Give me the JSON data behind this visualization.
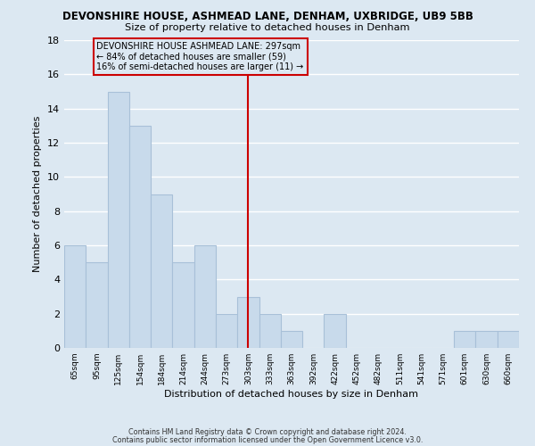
{
  "title": "DEVONSHIRE HOUSE, ASHMEAD LANE, DENHAM, UXBRIDGE, UB9 5BB",
  "subtitle": "Size of property relative to detached houses in Denham",
  "xlabel": "Distribution of detached houses by size in Denham",
  "ylabel": "Number of detached properties",
  "bar_color": "#c8daeb",
  "bar_edge_color": "#a8c0d8",
  "categories": [
    "65sqm",
    "95sqm",
    "125sqm",
    "154sqm",
    "184sqm",
    "214sqm",
    "244sqm",
    "273sqm",
    "303sqm",
    "333sqm",
    "363sqm",
    "392sqm",
    "422sqm",
    "452sqm",
    "482sqm",
    "511sqm",
    "541sqm",
    "571sqm",
    "601sqm",
    "630sqm",
    "660sqm"
  ],
  "values": [
    6,
    5,
    15,
    13,
    9,
    5,
    6,
    2,
    3,
    2,
    1,
    0,
    2,
    0,
    0,
    0,
    0,
    0,
    1,
    1,
    1
  ],
  "ylim": [
    0,
    18
  ],
  "yticks": [
    0,
    2,
    4,
    6,
    8,
    10,
    12,
    14,
    16,
    18
  ],
  "annotation_line1": "DEVONSHIRE HOUSE ASHMEAD LANE: 297sqm",
  "annotation_line2": "← 84% of detached houses are smaller (59)",
  "annotation_line3": "16% of semi-detached houses are larger (11) →",
  "vline_color": "#cc0000",
  "background_color": "#dce8f2",
  "grid_color": "#c8d8e8",
  "footer1": "Contains HM Land Registry data © Crown copyright and database right 2024.",
  "footer2": "Contains public sector information licensed under the Open Government Licence v3.0."
}
